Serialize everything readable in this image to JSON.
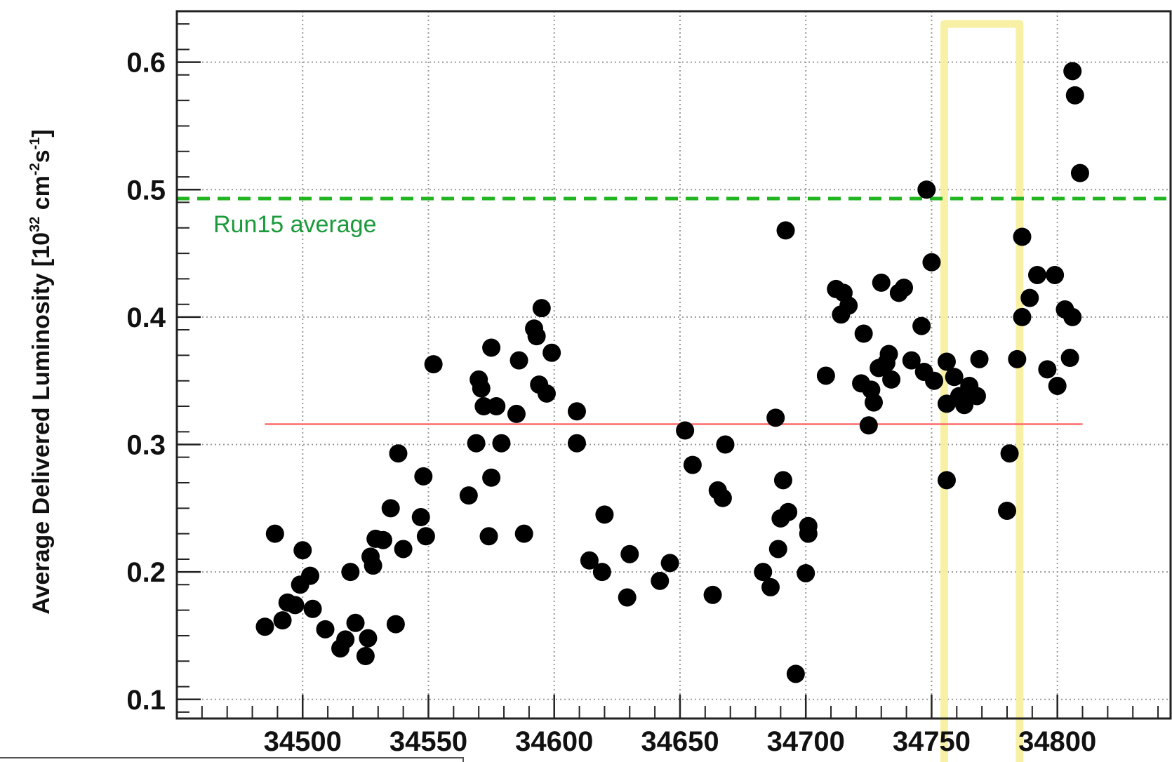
{
  "chart_data": {
    "type": "scatter",
    "title": "",
    "xlabel": "",
    "ylabel": {
      "base": "Average Delivered Luminosity [10",
      "sup1": "32",
      "mid": " cm",
      "sup2": "-2",
      "mid2": "s",
      "sup3": "-1",
      "end": "]"
    },
    "xlim": [
      34450,
      34845
    ],
    "ylim": [
      0.085,
      0.64
    ],
    "x_ticks": [
      "34500",
      "34550",
      "34600",
      "34650",
      "34700",
      "34750",
      "34800"
    ],
    "y_ticks": [
      "0.1",
      "0.2",
      "0.3",
      "0.4",
      "0.5",
      "0.6"
    ],
    "grid": true,
    "reference_lines": [
      {
        "label": "Run15 average",
        "y": 0.493,
        "style": "dashed",
        "color": "#22b522",
        "label_color": "#1a9a3a"
      },
      {
        "label": "",
        "y": 0.316,
        "x_range": [
          34485,
          34810
        ],
        "style": "solid",
        "color": "#ff6b6b"
      }
    ],
    "highlight_region": {
      "x_range": [
        34755,
        34785
      ],
      "y_top": 0.63,
      "color": "#f7ef9b"
    },
    "marker_color": "#000000",
    "points": [
      [
        34485,
        0.157
      ],
      [
        34489,
        0.23
      ],
      [
        34492,
        0.162
      ],
      [
        34494,
        0.176
      ],
      [
        34497,
        0.174
      ],
      [
        34499,
        0.19
      ],
      [
        34500,
        0.217
      ],
      [
        34503,
        0.197
      ],
      [
        34504,
        0.171
      ],
      [
        34509,
        0.155
      ],
      [
        34515,
        0.14
      ],
      [
        34517,
        0.147
      ],
      [
        34519,
        0.2
      ],
      [
        34521,
        0.16
      ],
      [
        34525,
        0.134
      ],
      [
        34526,
        0.148
      ],
      [
        34527,
        0.212
      ],
      [
        34529,
        0.226
      ],
      [
        34528,
        0.205
      ],
      [
        34532,
        0.225
      ],
      [
        34535,
        0.25
      ],
      [
        34537,
        0.159
      ],
      [
        34538,
        0.293
      ],
      [
        34540,
        0.218
      ],
      [
        34547,
        0.243
      ],
      [
        34548,
        0.275
      ],
      [
        34549,
        0.228
      ],
      [
        34552,
        0.363
      ],
      [
        34566,
        0.26
      ],
      [
        34569,
        0.301
      ],
      [
        34570,
        0.351
      ],
      [
        34571,
        0.344
      ],
      [
        34572,
        0.33
      ],
      [
        34574,
        0.228
      ],
      [
        34575,
        0.376
      ],
      [
        34575,
        0.274
      ],
      [
        34577,
        0.33
      ],
      [
        34579,
        0.301
      ],
      [
        34585,
        0.324
      ],
      [
        34586,
        0.366
      ],
      [
        34588,
        0.23
      ],
      [
        34592,
        0.391
      ],
      [
        34593,
        0.385
      ],
      [
        34594,
        0.347
      ],
      [
        34595,
        0.407
      ],
      [
        34597,
        0.34
      ],
      [
        34599,
        0.372
      ],
      [
        34609,
        0.326
      ],
      [
        34609,
        0.301
      ],
      [
        34614,
        0.209
      ],
      [
        34619,
        0.2
      ],
      [
        34620,
        0.245
      ],
      [
        34629,
        0.18
      ],
      [
        34630,
        0.214
      ],
      [
        34642,
        0.193
      ],
      [
        34646,
        0.207
      ],
      [
        34652,
        0.311
      ],
      [
        34655,
        0.284
      ],
      [
        34663,
        0.182
      ],
      [
        34665,
        0.264
      ],
      [
        34667,
        0.258
      ],
      [
        34668,
        0.3
      ],
      [
        34683,
        0.2
      ],
      [
        34686,
        0.188
      ],
      [
        34688,
        0.321
      ],
      [
        34689,
        0.218
      ],
      [
        34690,
        0.242
      ],
      [
        34691,
        0.272
      ],
      [
        34692,
        0.468
      ],
      [
        34693,
        0.247
      ],
      [
        34696,
        0.12
      ],
      [
        34700,
        0.199
      ],
      [
        34701,
        0.23
      ],
      [
        34701,
        0.236
      ],
      [
        34708,
        0.354
      ],
      [
        34712,
        0.422
      ],
      [
        34714,
        0.402
      ],
      [
        34715,
        0.419
      ],
      [
        34717,
        0.409
      ],
      [
        34722,
        0.348
      ],
      [
        34723,
        0.387
      ],
      [
        34725,
        0.315
      ],
      [
        34726,
        0.343
      ],
      [
        34727,
        0.333
      ],
      [
        34729,
        0.36
      ],
      [
        34730,
        0.427
      ],
      [
        34732,
        0.364
      ],
      [
        34733,
        0.371
      ],
      [
        34734,
        0.351
      ],
      [
        34737,
        0.419
      ],
      [
        34739,
        0.423
      ],
      [
        34742,
        0.366
      ],
      [
        34746,
        0.393
      ],
      [
        34747,
        0.357
      ],
      [
        34748,
        0.5
      ],
      [
        34750,
        0.443
      ],
      [
        34751,
        0.35
      ],
      [
        34756,
        0.365
      ],
      [
        34756,
        0.272
      ],
      [
        34756,
        0.332
      ],
      [
        34759,
        0.353
      ],
      [
        34761,
        0.338
      ],
      [
        34763,
        0.331
      ],
      [
        34765,
        0.346
      ],
      [
        34768,
        0.338
      ],
      [
        34769,
        0.367
      ],
      [
        34780,
        0.248
      ],
      [
        34781,
        0.293
      ],
      [
        34784,
        0.367
      ],
      [
        34786,
        0.463
      ],
      [
        34786,
        0.4
      ],
      [
        34789,
        0.415
      ],
      [
        34792,
        0.433
      ],
      [
        34796,
        0.359
      ],
      [
        34799,
        0.433
      ],
      [
        34800,
        0.346
      ],
      [
        34803,
        0.406
      ],
      [
        34805,
        0.368
      ],
      [
        34806,
        0.4
      ],
      [
        34806,
        0.593
      ],
      [
        34807,
        0.574
      ],
      [
        34809,
        0.513
      ]
    ]
  }
}
